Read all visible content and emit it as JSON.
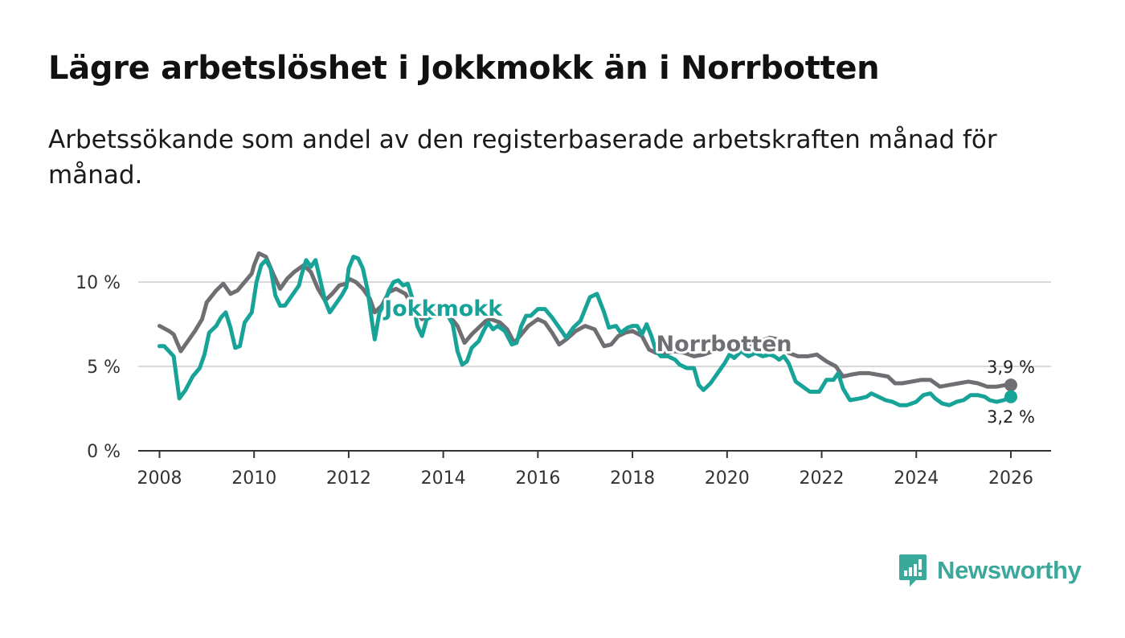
{
  "title": "Lägre arbetslöshet i Jokkmokk än i Norrbotten",
  "subtitle": "Arbetssökande som andel av den registerbaserade arbetskraften månad för månad.",
  "brand": {
    "name": "Newsworthy",
    "color": "#3aa89b",
    "icon": "newsworthy-logo-icon"
  },
  "chart_data": {
    "type": "line",
    "title": "Lägre arbetslöshet i Jokkmokk än i Norrbotten",
    "xlabel": "",
    "ylabel": "",
    "xlim": [
      2007.55,
      2026.85
    ],
    "ylim": [
      0,
      10
    ],
    "grid": true,
    "y_ticks": [
      0,
      5,
      10
    ],
    "y_tick_labels": [
      "0 %",
      "5 %",
      "10 %"
    ],
    "x_ticks": [
      2008,
      2010,
      2012,
      2014,
      2016,
      2018,
      2020,
      2022,
      2024,
      2026
    ],
    "x_tick_labels": [
      "2008",
      "2010",
      "2012",
      "2014",
      "2016",
      "2018",
      "2020",
      "2022",
      "2024",
      "2026"
    ],
    "series": [
      {
        "name": "Norrbotten",
        "color": "#6e6e73",
        "end_label": "3,9 %",
        "points": [
          [
            2008.0,
            7.4
          ],
          [
            2008.2,
            7.1
          ],
          [
            2008.3,
            6.9
          ],
          [
            2008.45,
            5.9
          ],
          [
            2008.6,
            6.5
          ],
          [
            2008.75,
            7.1
          ],
          [
            2008.9,
            7.8
          ],
          [
            2009.0,
            8.8
          ],
          [
            2009.2,
            9.5
          ],
          [
            2009.35,
            9.9
          ],
          [
            2009.5,
            9.3
          ],
          [
            2009.65,
            9.5
          ],
          [
            2009.8,
            10.0
          ],
          [
            2009.95,
            10.5
          ],
          [
            2010.0,
            11.0
          ],
          [
            2010.1,
            11.7
          ],
          [
            2010.25,
            11.5
          ],
          [
            2010.4,
            10.5
          ],
          [
            2010.55,
            9.6
          ],
          [
            2010.7,
            10.2
          ],
          [
            2010.85,
            10.6
          ],
          [
            2010.95,
            10.8
          ],
          [
            2011.05,
            11.0
          ],
          [
            2011.2,
            10.6
          ],
          [
            2011.35,
            9.6
          ],
          [
            2011.5,
            8.9
          ],
          [
            2011.65,
            9.3
          ],
          [
            2011.8,
            9.8
          ],
          [
            2011.95,
            9.9
          ],
          [
            2012.0,
            10.2
          ],
          [
            2012.15,
            10.0
          ],
          [
            2012.3,
            9.6
          ],
          [
            2012.45,
            9.0
          ],
          [
            2012.55,
            8.2
          ],
          [
            2012.7,
            8.6
          ],
          [
            2012.85,
            9.4
          ],
          [
            2013.0,
            9.6
          ],
          [
            2013.2,
            9.3
          ],
          [
            2013.4,
            8.3
          ],
          [
            2013.55,
            7.8
          ],
          [
            2013.7,
            8.1
          ],
          [
            2013.9,
            8.3
          ],
          [
            2014.1,
            8.1
          ],
          [
            2014.3,
            7.4
          ],
          [
            2014.45,
            6.4
          ],
          [
            2014.6,
            6.9
          ],
          [
            2014.75,
            7.3
          ],
          [
            2014.9,
            7.7
          ],
          [
            2015.0,
            7.8
          ],
          [
            2015.2,
            7.6
          ],
          [
            2015.35,
            7.2
          ],
          [
            2015.5,
            6.4
          ],
          [
            2015.65,
            6.9
          ],
          [
            2015.8,
            7.4
          ],
          [
            2016.0,
            7.8
          ],
          [
            2016.15,
            7.6
          ],
          [
            2016.3,
            7.0
          ],
          [
            2016.45,
            6.3
          ],
          [
            2016.6,
            6.6
          ],
          [
            2016.8,
            7.1
          ],
          [
            2017.0,
            7.4
          ],
          [
            2017.2,
            7.2
          ],
          [
            2017.4,
            6.2
          ],
          [
            2017.55,
            6.3
          ],
          [
            2017.7,
            6.8
          ],
          [
            2017.85,
            7.0
          ],
          [
            2018.0,
            7.1
          ],
          [
            2018.2,
            6.8
          ],
          [
            2018.35,
            6.0
          ],
          [
            2018.5,
            5.8
          ],
          [
            2018.7,
            5.8
          ],
          [
            2018.9,
            5.9
          ],
          [
            2019.1,
            5.8
          ],
          [
            2019.3,
            5.6
          ],
          [
            2019.5,
            5.7
          ],
          [
            2019.7,
            5.9
          ],
          [
            2019.9,
            6.0
          ],
          [
            2020.1,
            6.3
          ],
          [
            2020.3,
            6.4
          ],
          [
            2020.5,
            6.2
          ],
          [
            2020.7,
            6.5
          ],
          [
            2020.9,
            6.7
          ],
          [
            2021.1,
            6.6
          ],
          [
            2021.3,
            5.8
          ],
          [
            2021.5,
            5.6
          ],
          [
            2021.7,
            5.6
          ],
          [
            2021.9,
            5.7
          ],
          [
            2022.1,
            5.3
          ],
          [
            2022.3,
            5.0
          ],
          [
            2022.45,
            4.4
          ],
          [
            2022.6,
            4.5
          ],
          [
            2022.8,
            4.6
          ],
          [
            2023.0,
            4.6
          ],
          [
            2023.2,
            4.5
          ],
          [
            2023.4,
            4.4
          ],
          [
            2023.55,
            4.0
          ],
          [
            2023.7,
            4.0
          ],
          [
            2023.9,
            4.1
          ],
          [
            2024.1,
            4.2
          ],
          [
            2024.3,
            4.2
          ],
          [
            2024.5,
            3.8
          ],
          [
            2024.7,
            3.9
          ],
          [
            2024.9,
            4.0
          ],
          [
            2025.1,
            4.1
          ],
          [
            2025.3,
            4.0
          ],
          [
            2025.5,
            3.8
          ],
          [
            2025.7,
            3.8
          ],
          [
            2025.9,
            3.9
          ],
          [
            2026.0,
            3.9
          ]
        ]
      },
      {
        "name": "Jokkmokk",
        "color": "#17a398",
        "end_label": "3,2 %",
        "points": [
          [
            2008.0,
            6.2
          ],
          [
            2008.1,
            6.2
          ],
          [
            2008.2,
            5.9
          ],
          [
            2008.3,
            5.6
          ],
          [
            2008.42,
            3.1
          ],
          [
            2008.55,
            3.6
          ],
          [
            2008.7,
            4.4
          ],
          [
            2008.85,
            4.9
          ],
          [
            2008.95,
            5.7
          ],
          [
            2009.05,
            7.0
          ],
          [
            2009.2,
            7.4
          ],
          [
            2009.3,
            7.9
          ],
          [
            2009.4,
            8.2
          ],
          [
            2009.5,
            7.3
          ],
          [
            2009.6,
            6.1
          ],
          [
            2009.7,
            6.2
          ],
          [
            2009.8,
            7.6
          ],
          [
            2009.95,
            8.2
          ],
          [
            2010.05,
            10.0
          ],
          [
            2010.15,
            11.0
          ],
          [
            2010.25,
            11.3
          ],
          [
            2010.35,
            10.8
          ],
          [
            2010.45,
            9.2
          ],
          [
            2010.55,
            8.6
          ],
          [
            2010.65,
            8.6
          ],
          [
            2010.8,
            9.2
          ],
          [
            2010.95,
            9.8
          ],
          [
            2011.0,
            10.4
          ],
          [
            2011.1,
            11.3
          ],
          [
            2011.2,
            10.9
          ],
          [
            2011.3,
            11.3
          ],
          [
            2011.4,
            10.1
          ],
          [
            2011.5,
            8.9
          ],
          [
            2011.6,
            8.2
          ],
          [
            2011.7,
            8.6
          ],
          [
            2011.85,
            9.2
          ],
          [
            2011.95,
            9.7
          ],
          [
            2012.0,
            10.8
          ],
          [
            2012.1,
            11.5
          ],
          [
            2012.2,
            11.4
          ],
          [
            2012.3,
            10.8
          ],
          [
            2012.4,
            9.5
          ],
          [
            2012.5,
            7.5
          ],
          [
            2012.55,
            6.6
          ],
          [
            2012.65,
            8.2
          ],
          [
            2012.75,
            8.7
          ],
          [
            2012.85,
            9.5
          ],
          [
            2012.95,
            10.0
          ],
          [
            2013.05,
            10.1
          ],
          [
            2013.15,
            9.8
          ],
          [
            2013.25,
            9.9
          ],
          [
            2013.35,
            9.0
          ],
          [
            2013.45,
            7.4
          ],
          [
            2013.55,
            6.8
          ],
          [
            2013.65,
            7.8
          ],
          [
            2013.8,
            8.0
          ],
          [
            2013.95,
            8.2
          ],
          [
            2014.1,
            8.0
          ],
          [
            2014.2,
            7.5
          ],
          [
            2014.3,
            5.9
          ],
          [
            2014.4,
            5.1
          ],
          [
            2014.5,
            5.3
          ],
          [
            2014.6,
            6.1
          ],
          [
            2014.75,
            6.5
          ],
          [
            2014.85,
            7.1
          ],
          [
            2014.95,
            7.6
          ],
          [
            2015.05,
            7.2
          ],
          [
            2015.15,
            7.4
          ],
          [
            2015.3,
            7.1
          ],
          [
            2015.45,
            6.3
          ],
          [
            2015.55,
            6.4
          ],
          [
            2015.65,
            7.4
          ],
          [
            2015.75,
            8.0
          ],
          [
            2015.85,
            8.0
          ],
          [
            2016.0,
            8.4
          ],
          [
            2016.15,
            8.4
          ],
          [
            2016.3,
            7.9
          ],
          [
            2016.45,
            7.3
          ],
          [
            2016.6,
            6.7
          ],
          [
            2016.75,
            7.3
          ],
          [
            2016.9,
            7.7
          ],
          [
            2017.0,
            8.4
          ],
          [
            2017.1,
            9.1
          ],
          [
            2017.25,
            9.3
          ],
          [
            2017.4,
            8.2
          ],
          [
            2017.5,
            7.3
          ],
          [
            2017.65,
            7.4
          ],
          [
            2017.75,
            7.0
          ],
          [
            2017.9,
            7.3
          ],
          [
            2018.0,
            7.4
          ],
          [
            2018.1,
            7.4
          ],
          [
            2018.2,
            6.9
          ],
          [
            2018.3,
            7.5
          ],
          [
            2018.4,
            6.8
          ],
          [
            2018.5,
            5.9
          ],
          [
            2018.6,
            5.6
          ],
          [
            2018.75,
            5.6
          ],
          [
            2018.9,
            5.4
          ],
          [
            2019.0,
            5.1
          ],
          [
            2019.15,
            4.9
          ],
          [
            2019.3,
            4.9
          ],
          [
            2019.4,
            3.9
          ],
          [
            2019.5,
            3.6
          ],
          [
            2019.65,
            4.0
          ],
          [
            2019.8,
            4.6
          ],
          [
            2019.95,
            5.2
          ],
          [
            2020.05,
            5.7
          ],
          [
            2020.15,
            5.5
          ],
          [
            2020.3,
            5.9
          ],
          [
            2020.45,
            5.6
          ],
          [
            2020.6,
            5.8
          ],
          [
            2020.75,
            5.6
          ],
          [
            2020.9,
            5.7
          ],
          [
            2021.0,
            5.6
          ],
          [
            2021.1,
            5.4
          ],
          [
            2021.2,
            5.6
          ],
          [
            2021.3,
            5.2
          ],
          [
            2021.45,
            4.1
          ],
          [
            2021.6,
            3.8
          ],
          [
            2021.75,
            3.5
          ],
          [
            2021.95,
            3.5
          ],
          [
            2022.1,
            4.2
          ],
          [
            2022.25,
            4.2
          ],
          [
            2022.35,
            4.6
          ],
          [
            2022.45,
            3.7
          ],
          [
            2022.6,
            3.0
          ],
          [
            2022.8,
            3.1
          ],
          [
            2022.95,
            3.2
          ],
          [
            2023.05,
            3.4
          ],
          [
            2023.2,
            3.2
          ],
          [
            2023.35,
            3.0
          ],
          [
            2023.5,
            2.9
          ],
          [
            2023.65,
            2.7
          ],
          [
            2023.8,
            2.7
          ],
          [
            2024.0,
            2.9
          ],
          [
            2024.15,
            3.3
          ],
          [
            2024.3,
            3.4
          ],
          [
            2024.4,
            3.1
          ],
          [
            2024.55,
            2.8
          ],
          [
            2024.7,
            2.7
          ],
          [
            2024.85,
            2.9
          ],
          [
            2025.0,
            3.0
          ],
          [
            2025.15,
            3.3
          ],
          [
            2025.3,
            3.3
          ],
          [
            2025.45,
            3.2
          ],
          [
            2025.55,
            3.0
          ],
          [
            2025.7,
            2.9
          ],
          [
            2025.85,
            3.0
          ],
          [
            2026.0,
            3.2
          ]
        ]
      }
    ]
  }
}
